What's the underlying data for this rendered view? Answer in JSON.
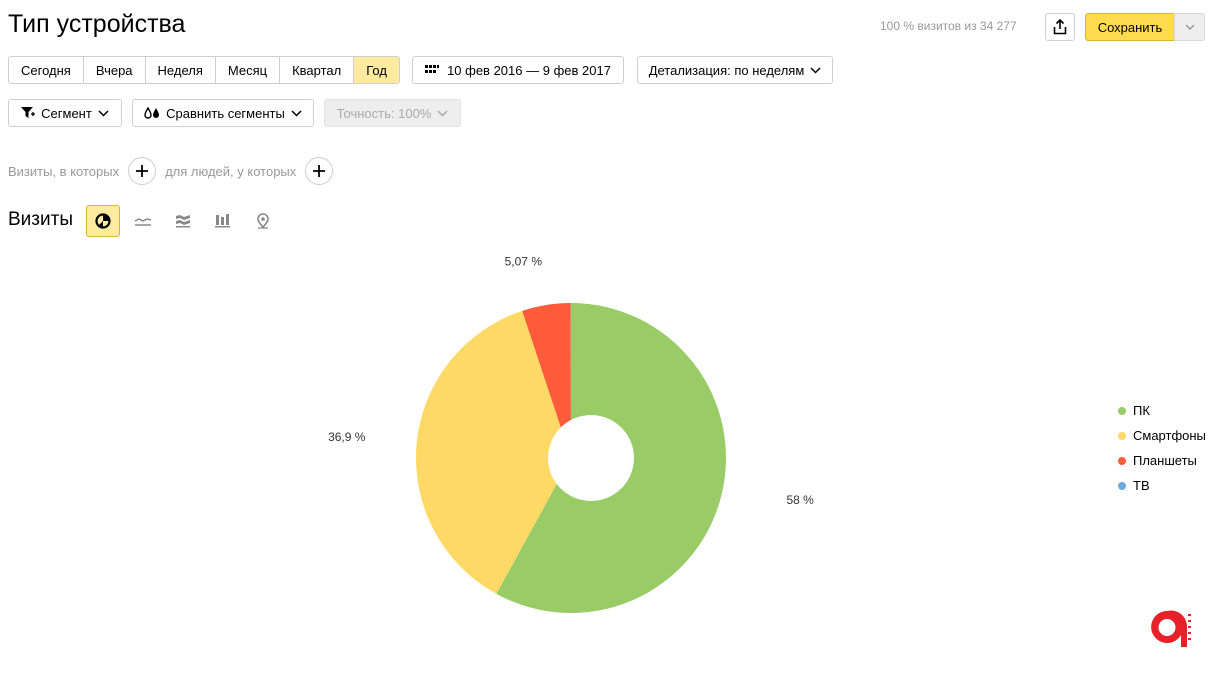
{
  "header": {
    "title": "Тип устройства",
    "visits_summary": "100 % визитов из 34 277",
    "save_label": "Сохранить"
  },
  "period": {
    "tabs": [
      "Сегодня",
      "Вчера",
      "Неделя",
      "Месяц",
      "Квартал",
      "Год"
    ],
    "active_index": 5,
    "date_range": "10 фев 2016 — 9 фев 2017",
    "detail_label": "Детализация: по неделям"
  },
  "controls": {
    "segment_label": "Сегмент",
    "compare_label": "Сравнить сегменты",
    "accuracy_label": "Точность: 100%"
  },
  "filters": {
    "visits_where": "Визиты, в которых",
    "people_where": "для людей, у которых"
  },
  "chart_section": {
    "title": "Визиты",
    "chart_types": [
      "pie-chart-icon",
      "line-chart-icon",
      "area-chart-icon",
      "bar-chart-icon",
      "map-chart-icon"
    ],
    "active_type": 0
  },
  "chart_data": {
    "type": "pie",
    "labels": [
      "ПК",
      "Смартфоны",
      "Планшеты",
      "ТВ"
    ],
    "values": [
      58,
      36.9,
      5.07,
      0.03
    ],
    "value_labels": [
      "58 %",
      "36,9 %",
      "5,07 %",
      ""
    ],
    "colors": [
      "#99cc66",
      "#ffd966",
      "#ff5c3b",
      "#6fa8dc"
    ],
    "legend_position": "right",
    "donut": true
  },
  "legend": {
    "items": [
      {
        "label": "ПК",
        "color": "#99cc66"
      },
      {
        "label": "Смартфоны",
        "color": "#ffd966"
      },
      {
        "label": "Планшеты",
        "color": "#ff5c3b"
      },
      {
        "label": "ТВ",
        "color": "#6fa8dc"
      }
    ]
  },
  "colors": {
    "accent": "#ffdb4d",
    "active_tab": "#ffeba0",
    "logo": "#e8202a"
  }
}
